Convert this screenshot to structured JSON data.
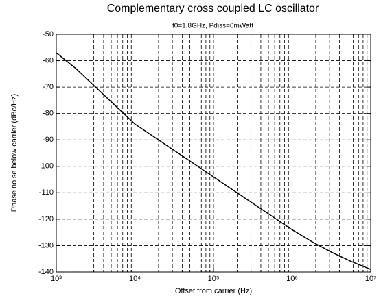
{
  "chart_data": {
    "type": "line",
    "title": "Complementary cross coupled LC oscillator",
    "subtitle": "f0=1.8GHz, Pdiss=6mWatt",
    "x_label": "Offset from carrier (Hz)",
    "y_label": "Phase noise below carrier (dBc/Hz)",
    "x": [
      1000,
      1780,
      3160,
      5620,
      10000,
      17800,
      31600,
      56200,
      100000,
      178000,
      316000,
      562000,
      1000000,
      1780000,
      3160000,
      5620000,
      10000000
    ],
    "series": [
      {
        "name": "Phase noise",
        "color": "#000000",
        "values": [
          -57,
          -63,
          -70,
          -77,
          -84,
          -89,
          -94,
          -99,
          -104,
          -109,
          -114,
          -119,
          -124,
          -128.5,
          -132.5,
          -136,
          -139
        ]
      }
    ],
    "xscale": "log",
    "xlim": [
      1000,
      10000000
    ],
    "ylim": [
      -140,
      -50
    ],
    "xticks": [
      {
        "value": 1000,
        "label": "10³"
      },
      {
        "value": 10000,
        "label": "10⁴"
      },
      {
        "value": 100000,
        "label": "10⁵"
      },
      {
        "value": 1000000,
        "label": "10⁶"
      },
      {
        "value": 10000000,
        "label": "10⁷"
      }
    ],
    "xminorticks": [
      2000,
      3000,
      4000,
      5000,
      6000,
      7000,
      8000,
      9000,
      20000,
      30000,
      40000,
      50000,
      60000,
      70000,
      80000,
      90000,
      200000,
      300000,
      400000,
      500000,
      600000,
      700000,
      800000,
      900000,
      2000000,
      3000000,
      4000000,
      5000000,
      6000000,
      7000000,
      8000000,
      9000000
    ],
    "yticks": [
      -140,
      -130,
      -120,
      -110,
      -100,
      -90,
      -80,
      -70,
      -60,
      -50
    ],
    "grid": true
  }
}
